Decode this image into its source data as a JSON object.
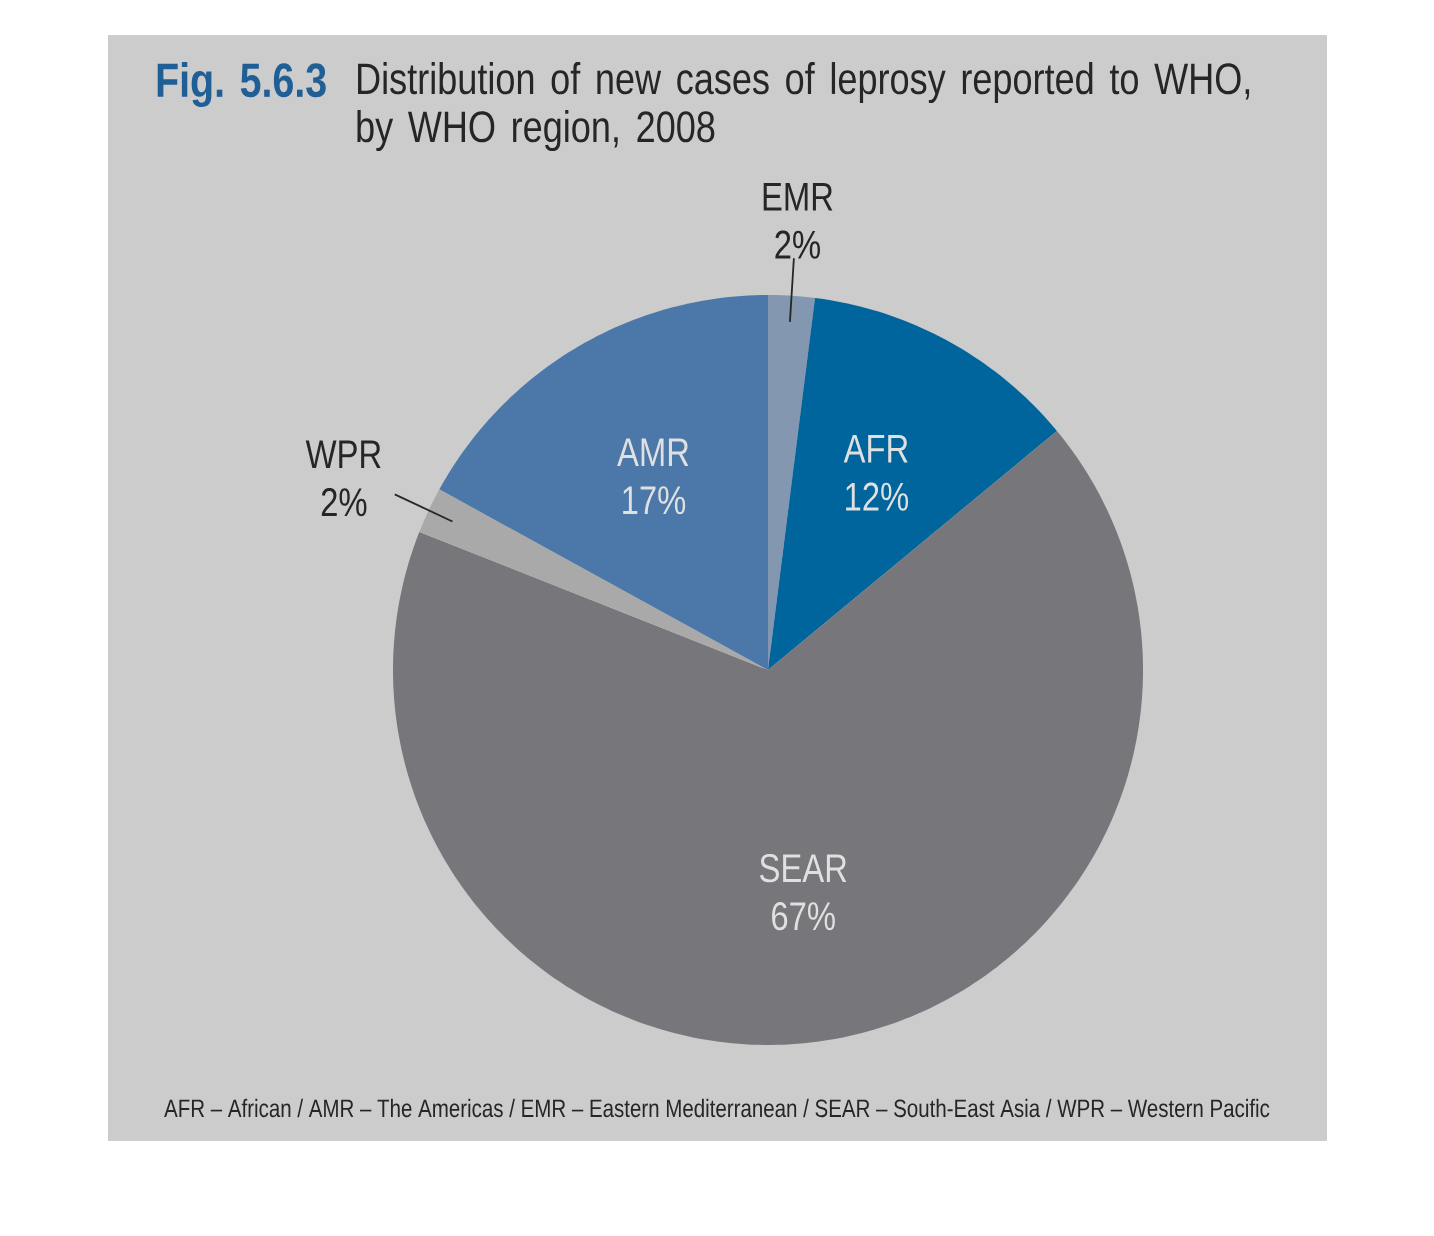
{
  "chart_data": {
    "type": "pie",
    "title": "Fig. 5.6.3",
    "subtitle": "Distribution of new cases of leprosy reported to WHO, by WHO region, 2008",
    "categories": [
      "EMR",
      "AFR",
      "SEAR",
      "WPR",
      "AMR"
    ],
    "values": [
      2,
      12,
      67,
      2,
      17
    ],
    "value_labels": [
      "2%",
      "12%",
      "67%",
      "2%",
      "17%"
    ],
    "colors": [
      "#8497b0",
      "#00659c",
      "#77777b",
      "#a9a9aa",
      "#4b78a8"
    ],
    "annotations": [
      "AFR – African / AMR – The Americas / EMR – Eastern Mediterranean / SEAR – South-East Asia / WPR – Western Pacific"
    ]
  }
}
